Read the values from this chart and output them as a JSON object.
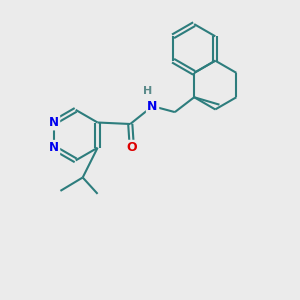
{
  "background_color": "#ebebeb",
  "bond_color": "#2d7d7d",
  "n_color": "#0000ee",
  "o_color": "#dd0000",
  "h_color": "#5a8a8a",
  "line_width": 1.5,
  "figsize": [
    3.0,
    3.0
  ],
  "dpi": 100,
  "xlim": [
    0,
    10
  ],
  "ylim": [
    0,
    10
  ]
}
